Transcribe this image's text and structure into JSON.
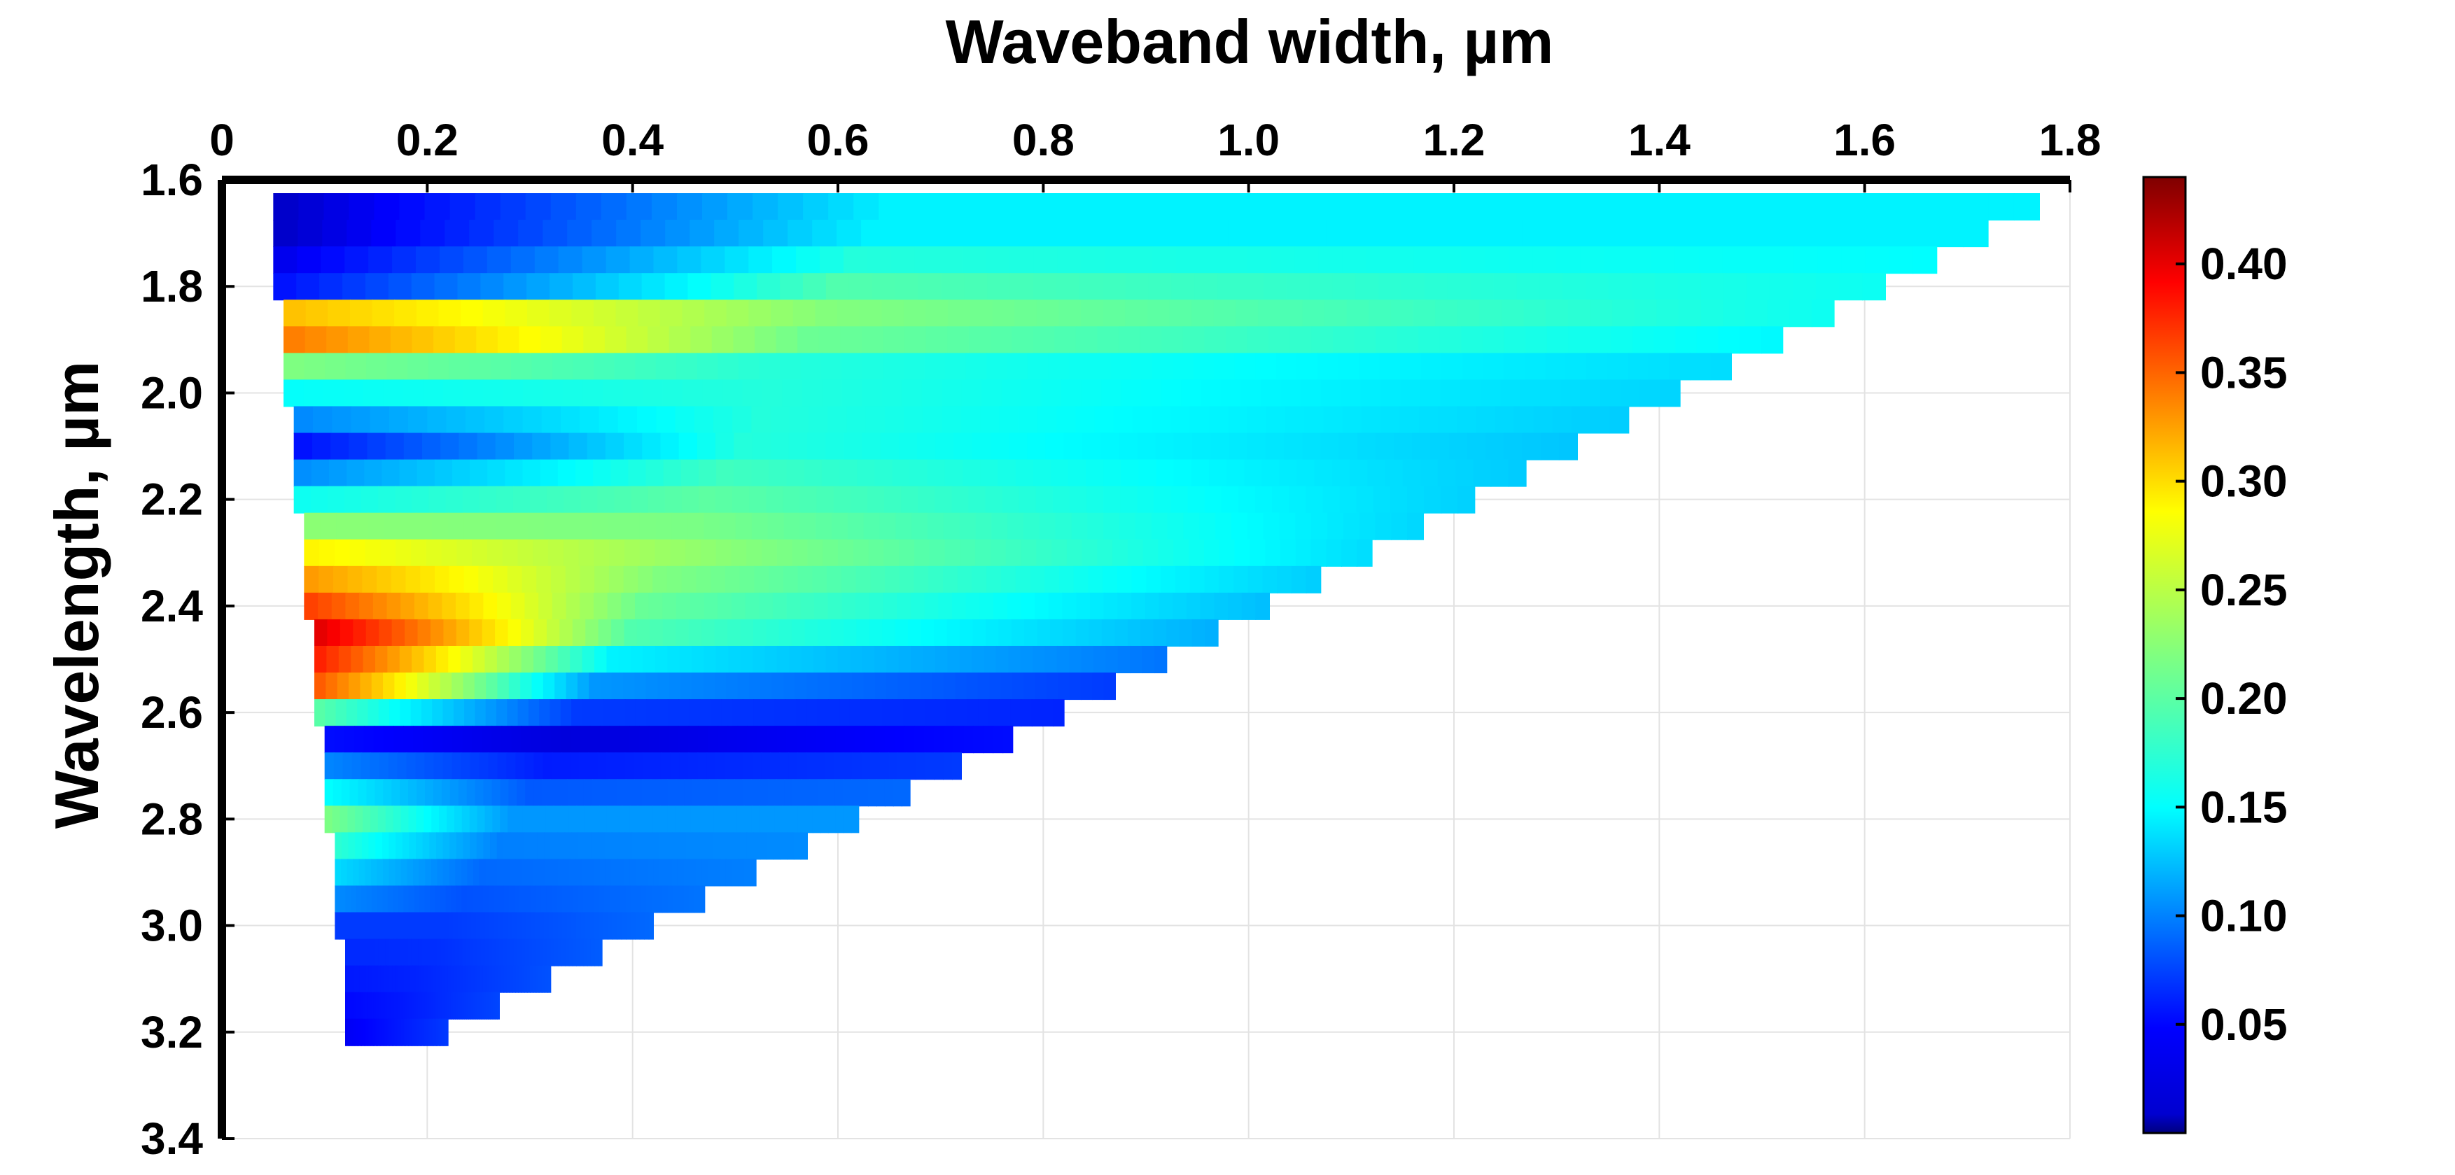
{
  "chart_data": {
    "type": "heatmap",
    "title": "Waveband width, µm",
    "xlabel": "",
    "ylabel": "Wavelength, µm",
    "xlim": [
      0,
      1.8
    ],
    "ylim": [
      1.6,
      3.4
    ],
    "x_axis_position": "top",
    "y_axis_inverted": true,
    "grid": true,
    "x_ticks": [
      "0",
      "0.2",
      "0.4",
      "0.6",
      "0.8",
      "1.0",
      "1.2",
      "1.4",
      "1.6",
      "1.8"
    ],
    "y_ticks": [
      "1.6",
      "1.8",
      "2.0",
      "2.2",
      "2.4",
      "2.6",
      "2.8",
      "3.0",
      "3.2",
      "3.4"
    ],
    "colorbar": {
      "colormap": "jet",
      "range": [
        0.0,
        0.44
      ],
      "ticks": [
        "0.05",
        "0.10",
        "0.15",
        "0.20",
        "0.25",
        "0.30",
        "0.35",
        "0.40"
      ]
    },
    "wavelengths": [
      1.65,
      1.7,
      1.75,
      1.8,
      1.85,
      1.9,
      1.95,
      2.0,
      2.05,
      2.1,
      2.15,
      2.2,
      2.25,
      2.3,
      2.35,
      2.4,
      2.45,
      2.5,
      2.55,
      2.6,
      2.65,
      2.7,
      2.75,
      2.8,
      2.85,
      2.9,
      2.95,
      3.0,
      3.05,
      3.1,
      3.15,
      3.2
    ],
    "waveband_width_min": [
      0.05,
      0.05,
      0.05,
      0.05,
      0.06,
      0.06,
      0.06,
      0.06,
      0.07,
      0.07,
      0.07,
      0.07,
      0.08,
      0.08,
      0.08,
      0.08,
      0.09,
      0.09,
      0.09,
      0.09,
      0.1,
      0.1,
      0.1,
      0.1,
      0.11,
      0.11,
      0.11,
      0.11,
      0.12,
      0.12,
      0.12,
      0.12
    ],
    "waveband_width_max": [
      1.77,
      1.72,
      1.67,
      1.62,
      1.57,
      1.52,
      1.47,
      1.42,
      1.37,
      1.32,
      1.27,
      1.22,
      1.17,
      1.12,
      1.07,
      1.02,
      0.97,
      0.92,
      0.87,
      0.82,
      0.77,
      0.72,
      0.67,
      0.62,
      0.57,
      0.52,
      0.47,
      0.42,
      0.37,
      0.32,
      0.27,
      0.22
    ],
    "value_profile_by_wavelength": [
      {
        "wavelength": 1.7,
        "narrow": 0.03,
        "mid": 0.16,
        "wide": 0.16
      },
      {
        "wavelength": 1.8,
        "narrow": 0.06,
        "mid": 0.2,
        "wide": 0.17
      },
      {
        "wavelength": 1.87,
        "narrow": 0.4,
        "mid": 0.23,
        "wide": 0.17
      },
      {
        "wavelength": 1.95,
        "narrow": 0.22,
        "mid": 0.18,
        "wide": 0.15
      },
      {
        "wavelength": 2.1,
        "narrow": 0.06,
        "mid": 0.18,
        "wide": 0.14
      },
      {
        "wavelength": 2.3,
        "narrow": 0.28,
        "mid": 0.23,
        "wide": 0.15
      },
      {
        "wavelength": 2.45,
        "narrow": 0.4,
        "mid": 0.2,
        "wide": 0.13
      },
      {
        "wavelength": 2.55,
        "narrow": 0.35,
        "mid": 0.12,
        "wide": 0.08
      },
      {
        "wavelength": 2.65,
        "narrow": 0.06,
        "mid": 0.04,
        "wide": 0.06
      },
      {
        "wavelength": 2.8,
        "narrow": 0.22,
        "mid": 0.12,
        "wide": 0.12
      },
      {
        "wavelength": 3.0,
        "narrow": 0.08,
        "mid": 0.08,
        "wide": 0.1
      },
      {
        "wavelength": 3.2,
        "narrow": 0.05,
        "mid": 0.06,
        "wide": 0.08
      }
    ]
  }
}
